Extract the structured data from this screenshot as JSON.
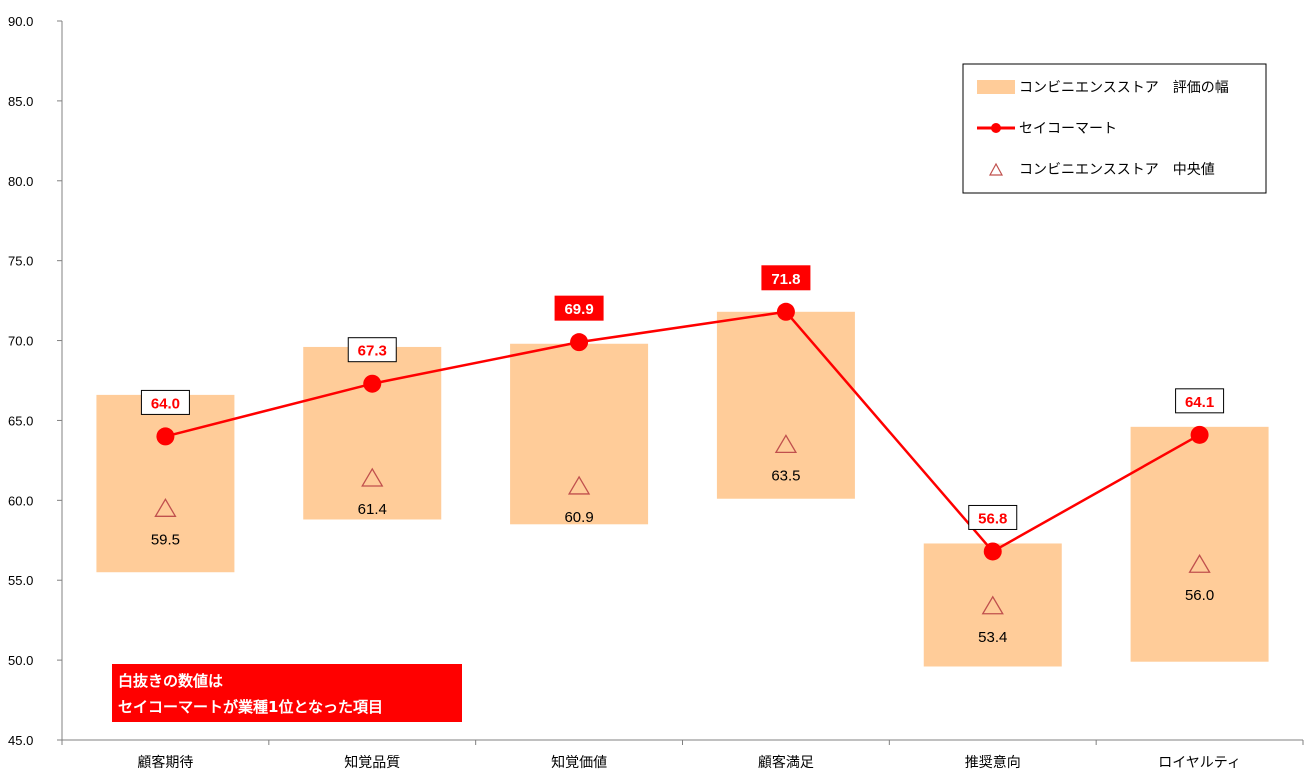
{
  "chart_data": {
    "type": "bar",
    "categories": [
      "顧客期待",
      "知覚品質",
      "知覚価値",
      "顧客満足",
      "推奨意向",
      "ロイヤルティ"
    ],
    "ylim": [
      45,
      90
    ],
    "ytick_step": 5,
    "ytick_labels": [
      "45.0",
      "50.0",
      "55.0",
      "60.0",
      "65.0",
      "70.0",
      "75.0",
      "80.0",
      "85.0",
      "90.0"
    ],
    "grid": false,
    "legend_position": "top-right",
    "series": [
      {
        "name": "コンビニエンスストア　評価の幅",
        "kind": "range-bar",
        "color": "#FFCC99",
        "low": [
          55.5,
          58.8,
          58.5,
          60.1,
          49.6,
          49.9
        ],
        "high": [
          66.6,
          69.6,
          69.8,
          71.8,
          57.3,
          64.6
        ]
      },
      {
        "name": "セイコーマート",
        "kind": "line",
        "color": "#FF0000",
        "values": [
          64.0,
          67.3,
          69.9,
          71.8,
          56.8,
          64.1
        ],
        "labels": [
          "64.0",
          "67.3",
          "69.9",
          "71.8",
          "56.8",
          "64.1"
        ],
        "first_place": [
          false,
          false,
          true,
          true,
          false,
          false
        ]
      },
      {
        "name": "コンビニエンスストア　中央値",
        "kind": "marker",
        "color": "#C0504D",
        "values": [
          59.5,
          61.4,
          60.9,
          63.5,
          53.4,
          56.0
        ],
        "labels": [
          "59.5",
          "61.4",
          "60.9",
          "63.5",
          "53.4",
          "56.0"
        ]
      }
    ],
    "note": {
      "lines": [
        "白抜きの数値は",
        "セイコーマートが業種1位となった項目"
      ],
      "background": "#FF0000"
    }
  }
}
